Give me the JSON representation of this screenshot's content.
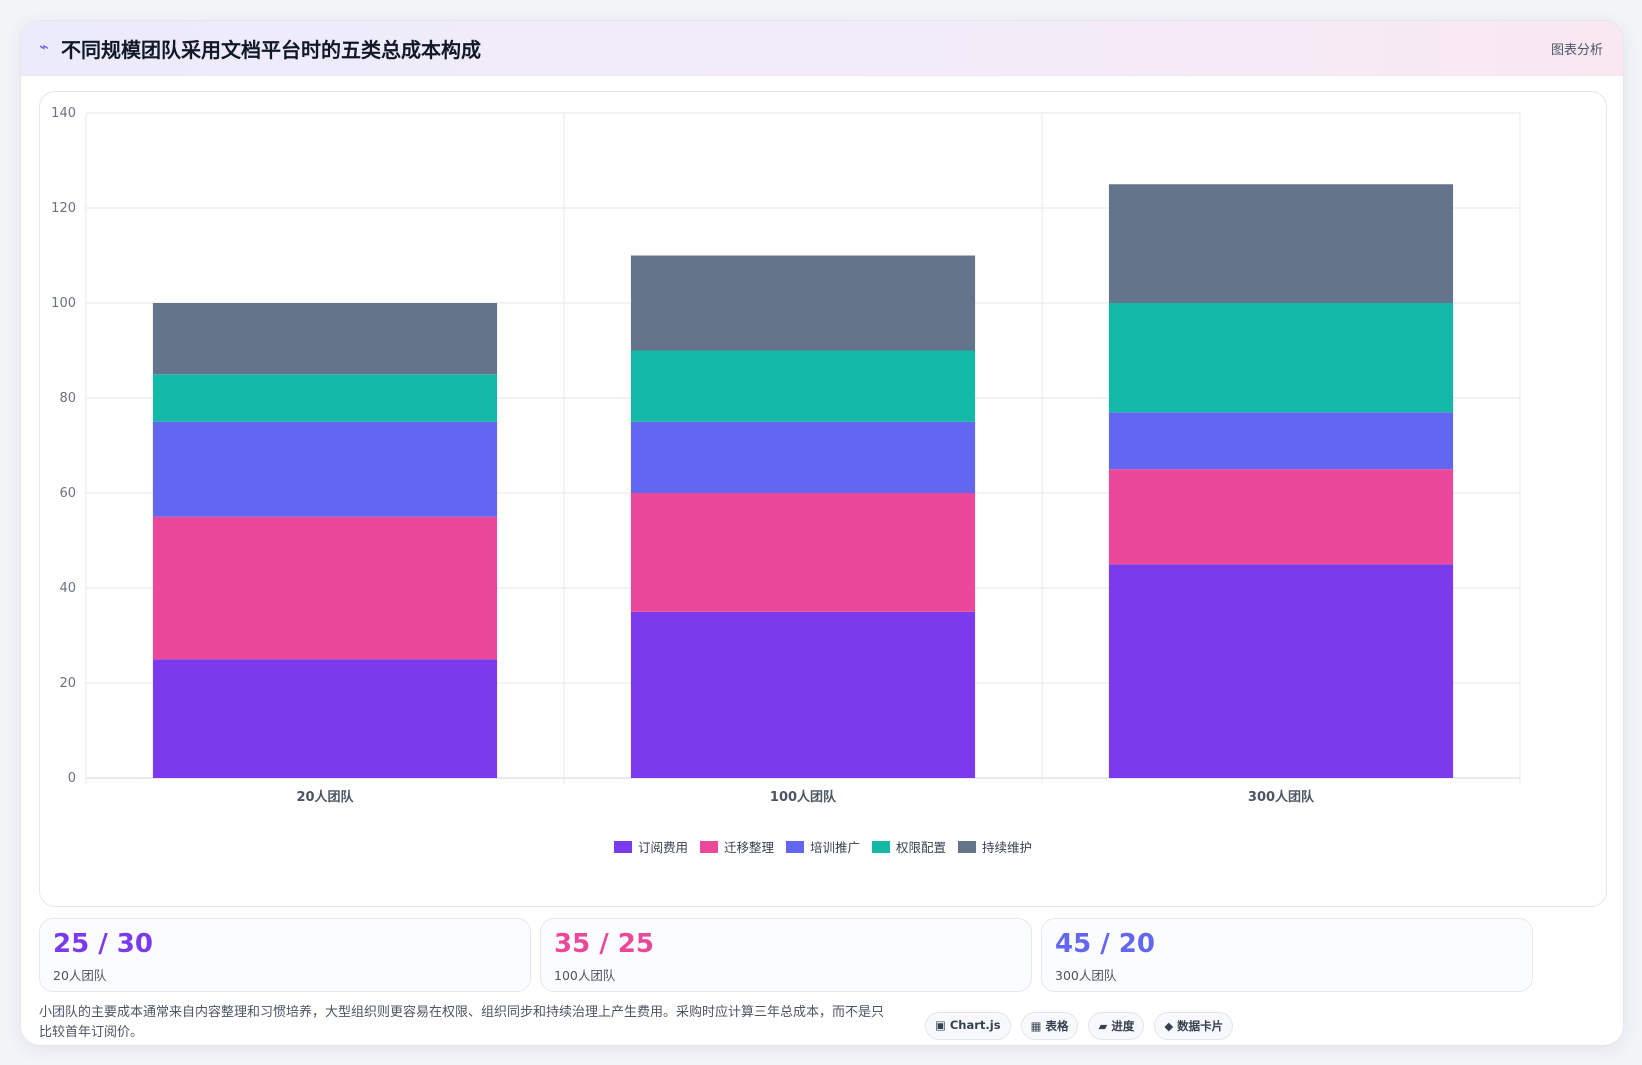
{
  "header": {
    "icon": "⌁",
    "title": "不同规模团队采用文档平台时的五类总成本构成",
    "tag": "图表分析"
  },
  "chart_data": {
    "type": "bar",
    "stacked": true,
    "categories": [
      "20人团队",
      "100人团队",
      "300人团队"
    ],
    "series": [
      {
        "name": "订阅费用",
        "color": "#7c3aed",
        "values": [
          25,
          35,
          45
        ]
      },
      {
        "name": "迁移整理",
        "color": "#ec4899",
        "values": [
          30,
          25,
          20
        ]
      },
      {
        "name": "培训推广",
        "color": "#6366f1",
        "values": [
          20,
          15,
          12
        ]
      },
      {
        "name": "权限配置",
        "color": "#14b8a6",
        "values": [
          10,
          15,
          23
        ]
      },
      {
        "name": "持续维护",
        "color": "#64748b",
        "values": [
          15,
          20,
          25
        ]
      }
    ],
    "ylim": [
      0,
      140
    ],
    "yticks": [
      0,
      20,
      40,
      60,
      80,
      100,
      120,
      140
    ],
    "grid": true,
    "legend": "bottom"
  },
  "stats": [
    {
      "value": "25 / 30",
      "label": "20人团队",
      "color": "#7c3aed"
    },
    {
      "value": "35 / 25",
      "label": "100人团队",
      "color": "#ec4899"
    },
    {
      "value": "45 / 20",
      "label": "300人团队",
      "color": "#6366f1"
    }
  ],
  "footer": {
    "note": "小团队的主要成本通常来自内容整理和习惯培养，大型组织则更容易在权限、组织同步和持续治理上产生费用。采购时应计算三年总成本，而不是只比较首年订阅价。",
    "chips": [
      "▣ Chart.js",
      "▦ 表格",
      "▰ 进度",
      "◆ 数据卡片"
    ]
  }
}
